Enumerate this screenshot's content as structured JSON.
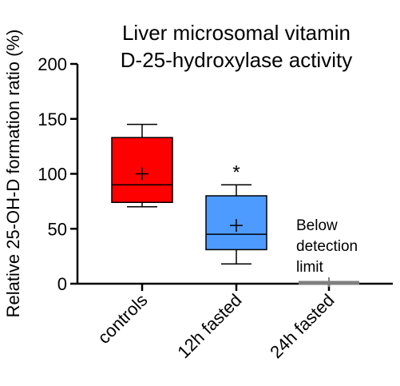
{
  "chart_data": {
    "type": "box",
    "title_lines": [
      "Liver microsomal vitamin",
      "D-25-hydroxylase activity"
    ],
    "ylabel": "Relative 25-OH-D formation ratio (%)",
    "xlabel": "",
    "ylim": [
      0,
      200
    ],
    "yticks": [
      0,
      50,
      100,
      150,
      200
    ],
    "categories": [
      "controls",
      "12h fasted",
      "24h fasted"
    ],
    "boxes": [
      {
        "category": "controls",
        "min": 70,
        "q1": 74,
        "median": 90,
        "q3": 133,
        "max": 145,
        "mean": 100,
        "color": "#ff0000"
      },
      {
        "category": "12h fasted",
        "min": 18,
        "q1": 31,
        "median": 45,
        "q3": 80,
        "max": 90,
        "mean": 53,
        "color": "#4d9bff",
        "annotation": "*"
      },
      {
        "category": "24h fasted",
        "min": 0,
        "q1": 0,
        "median": 0,
        "q3": 0,
        "max": 0,
        "mean": 0,
        "color": "#808080"
      }
    ],
    "annotation_note_lines": [
      "Below",
      "detection",
      " limit"
    ],
    "grid": false,
    "legend": "none"
  }
}
